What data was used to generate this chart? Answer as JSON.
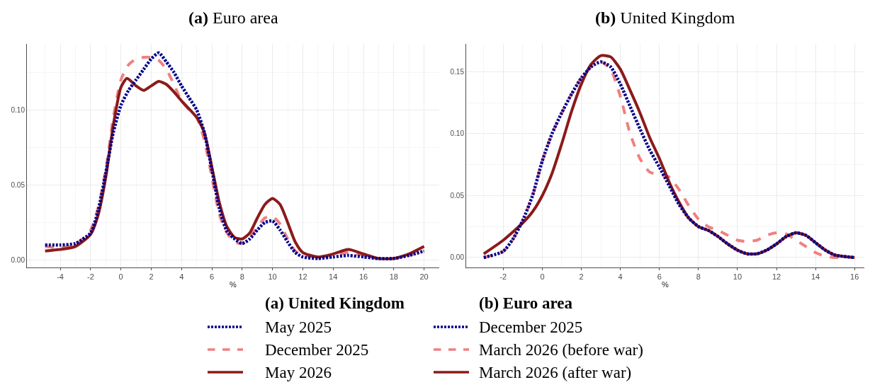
{
  "chart_data": [
    {
      "type": "line",
      "title": "(a) Euro area",
      "xlabel": "%",
      "legend_title": "(b) Euro area",
      "legend": "bottom",
      "grid": true,
      "xlim": [
        -6.2,
        21
      ],
      "xticks": [
        -4,
        -2,
        0,
        2,
        4,
        6,
        8,
        10,
        12,
        14,
        16,
        18,
        20
      ],
      "ylim": [
        -0.005,
        0.144
      ],
      "yticks": [
        {
          "value": 0,
          "label": "0.00"
        },
        {
          "value": 0.05,
          "label": "0.05"
        },
        {
          "value": 0.1,
          "label": "0.10"
        }
      ],
      "series": [
        {
          "name": "December 2025",
          "color": "#00008b",
          "line_style": "dotted",
          "x": [
            -5,
            -4,
            -3,
            -2,
            -1.5,
            -1,
            -0.5,
            0,
            0.5,
            1,
            1.5,
            2,
            2.5,
            3,
            3.5,
            4,
            4.5,
            5,
            5.5,
            6,
            6.5,
            7,
            7.5,
            8,
            8.5,
            9,
            9.5,
            10,
            10.5,
            11,
            11.5,
            12,
            13,
            14,
            15,
            16,
            17,
            18,
            19,
            20
          ],
          "values": [
            0.01,
            0.01,
            0.011,
            0.018,
            0.033,
            0.058,
            0.085,
            0.103,
            0.113,
            0.12,
            0.127,
            0.134,
            0.138,
            0.132,
            0.125,
            0.116,
            0.108,
            0.1,
            0.085,
            0.06,
            0.034,
            0.019,
            0.014,
            0.011,
            0.014,
            0.02,
            0.025,
            0.026,
            0.02,
            0.012,
            0.005,
            0.002,
            0.001,
            0.002,
            0.003,
            0.002,
            0.001,
            0.001,
            0.003,
            0.006
          ]
        },
        {
          "name": "March 2026 (before war)",
          "color": "#f08080",
          "line_style": "dashed",
          "x": [
            -5,
            -4,
            -3,
            -2,
            -1.5,
            -1,
            -0.5,
            0,
            0.5,
            1,
            1.5,
            2,
            2.5,
            3,
            3.5,
            4,
            4.5,
            5,
            5.5,
            6,
            6.5,
            7,
            7.5,
            8,
            8.5,
            9,
            9.5,
            10,
            10.5,
            11,
            11.5,
            12,
            13,
            14,
            15,
            16,
            17,
            18,
            19,
            20
          ],
          "values": [
            0.009,
            0.008,
            0.01,
            0.02,
            0.035,
            0.06,
            0.095,
            0.12,
            0.13,
            0.134,
            0.135,
            0.135,
            0.133,
            0.127,
            0.117,
            0.106,
            0.1,
            0.095,
            0.08,
            0.055,
            0.03,
            0.018,
            0.012,
            0.011,
            0.015,
            0.022,
            0.028,
            0.029,
            0.024,
            0.014,
            0.006,
            0.003,
            0.002,
            0.003,
            0.005,
            0.003,
            0.001,
            0.001,
            0.003,
            0.006
          ]
        },
        {
          "name": "March 2026 (after war)",
          "color": "#8b1a1a",
          "line_style": "solid",
          "x": [
            -5,
            -4,
            -3,
            -2,
            -1.5,
            -1,
            -0.5,
            0,
            0.4,
            1,
            1.5,
            2,
            2.5,
            3,
            3.5,
            4,
            5,
            5.5,
            6,
            6.5,
            7,
            7.5,
            8,
            8.5,
            9,
            9.5,
            10,
            10.5,
            11,
            11.5,
            12,
            13,
            14,
            15,
            16,
            17,
            18,
            19,
            20
          ],
          "values": [
            0.006,
            0.007,
            0.009,
            0.017,
            0.03,
            0.055,
            0.09,
            0.115,
            0.121,
            0.116,
            0.113,
            0.116,
            0.119,
            0.117,
            0.112,
            0.106,
            0.095,
            0.085,
            0.062,
            0.038,
            0.022,
            0.015,
            0.014,
            0.018,
            0.028,
            0.037,
            0.041,
            0.037,
            0.025,
            0.012,
            0.005,
            0.002,
            0.004,
            0.007,
            0.004,
            0.001,
            0.001,
            0.004,
            0.009
          ]
        }
      ]
    },
    {
      "type": "line",
      "title": "(b) United Kingdom",
      "xlabel": "%",
      "legend_title": "(a) United Kingdom",
      "legend": "bottom",
      "grid": true,
      "xlim": [
        -3.9,
        16.5
      ],
      "xticks": [
        -2,
        0,
        2,
        4,
        6,
        8,
        10,
        12,
        14,
        16
      ],
      "ylim": [
        -0.008,
        0.1725
      ],
      "yticks": [
        {
          "value": 0,
          "label": "0.00"
        },
        {
          "value": 0.05,
          "label": "0.05"
        },
        {
          "value": 0.1,
          "label": "0.10"
        },
        {
          "value": 0.15,
          "label": "0.15"
        }
      ],
      "series": [
        {
          "name": "May 2025",
          "color": "#00008b",
          "line_style": "dotted",
          "x": [
            -3,
            -2,
            -1.5,
            -1,
            -0.5,
            0,
            0.5,
            1,
            1.5,
            2,
            2.5,
            3,
            3.5,
            4,
            4.5,
            5,
            5.5,
            6,
            6.5,
            7,
            7.5,
            8,
            8.5,
            9,
            9.5,
            10,
            10.5,
            11,
            11.5,
            12,
            12.5,
            13,
            13.5,
            14,
            14.5,
            15,
            16
          ],
          "values": [
            0.0,
            0.005,
            0.015,
            0.03,
            0.05,
            0.078,
            0.1,
            0.117,
            0.132,
            0.145,
            0.154,
            0.158,
            0.154,
            0.14,
            0.122,
            0.104,
            0.087,
            0.073,
            0.058,
            0.043,
            0.032,
            0.025,
            0.022,
            0.017,
            0.011,
            0.006,
            0.003,
            0.003,
            0.006,
            0.011,
            0.017,
            0.02,
            0.018,
            0.012,
            0.006,
            0.002,
            0.0
          ]
        },
        {
          "name": "December 2025",
          "color": "#f08080",
          "line_style": "dashed",
          "x": [
            -3,
            -2,
            -1.5,
            -1,
            -0.5,
            0,
            0.5,
            1,
            1.5,
            2,
            2.5,
            3,
            3.5,
            4,
            4.5,
            5,
            5.5,
            6,
            6.5,
            7,
            7.5,
            8,
            8.5,
            9,
            9.5,
            10,
            10.5,
            11,
            11.5,
            12,
            12.5,
            13,
            13.5,
            14,
            14.5,
            15,
            15.5
          ],
          "values": [
            0.0,
            0.005,
            0.015,
            0.03,
            0.05,
            0.078,
            0.1,
            0.117,
            0.132,
            0.145,
            0.154,
            0.158,
            0.152,
            0.13,
            0.1,
            0.08,
            0.069,
            0.067,
            0.065,
            0.055,
            0.042,
            0.031,
            0.025,
            0.022,
            0.018,
            0.014,
            0.013,
            0.014,
            0.018,
            0.02,
            0.019,
            0.014,
            0.009,
            0.004,
            0.001,
            0.0,
            0.0
          ]
        },
        {
          "name": "May 2026",
          "color": "#8b1a1a",
          "line_style": "solid",
          "x": [
            -3,
            -2,
            -1,
            -0.5,
            0,
            0.5,
            1,
            1.5,
            2,
            2.5,
            3,
            3.5,
            4,
            4.5,
            5,
            5.5,
            6,
            6.5,
            7,
            7.5,
            8,
            8.5,
            9,
            9.5,
            10,
            10.5,
            11,
            11.5,
            12,
            12.5,
            13,
            13.5,
            14,
            14.5,
            15,
            16
          ],
          "values": [
            0.003,
            0.014,
            0.028,
            0.037,
            0.05,
            0.068,
            0.092,
            0.118,
            0.14,
            0.156,
            0.163,
            0.162,
            0.152,
            0.135,
            0.117,
            0.097,
            0.08,
            0.061,
            0.045,
            0.032,
            0.025,
            0.022,
            0.017,
            0.011,
            0.006,
            0.003,
            0.003,
            0.006,
            0.011,
            0.017,
            0.02,
            0.018,
            0.012,
            0.006,
            0.002,
            0.0
          ]
        }
      ]
    }
  ]
}
